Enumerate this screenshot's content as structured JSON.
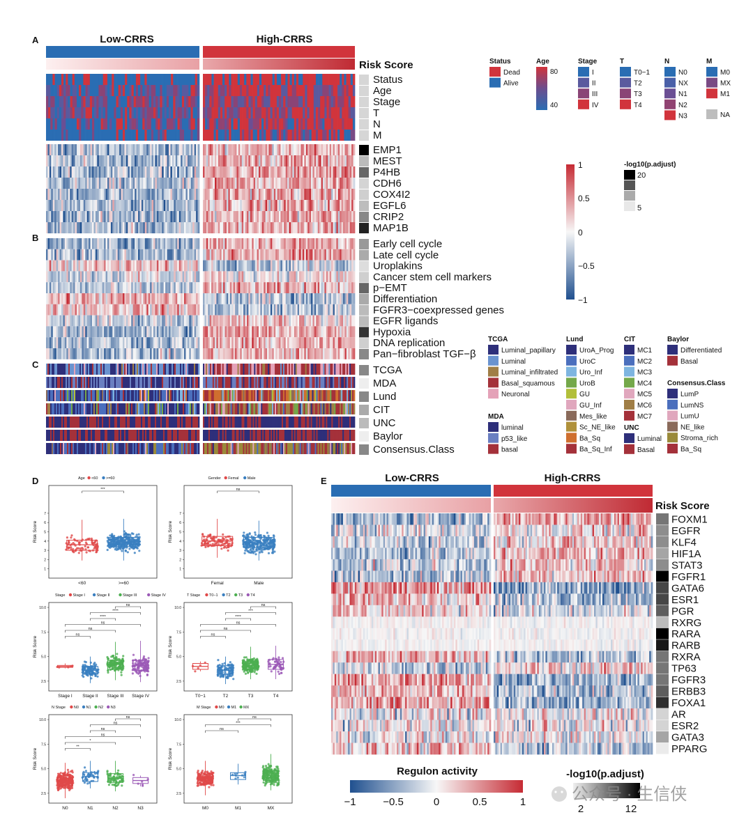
{
  "panels": [
    "A",
    "B",
    "C",
    "D",
    "E"
  ],
  "groups": {
    "low": "Low-CRRS",
    "high": "High-CRRS"
  },
  "risk_label": "Risk Score",
  "colors": {
    "blue": "#2a6db3",
    "red": "#d1343c",
    "gray": "#bdbdbd",
    "pink_light": "#f4d3d3",
    "pink_dark": "#c23840"
  },
  "clinical_rows": [
    "Status",
    "Age",
    "Stage",
    "T",
    "N",
    "M"
  ],
  "gene_rows": [
    "EMP1",
    "MEST",
    "P4HB",
    "CDH6",
    "COX4I2",
    "EGFL6",
    "CRIP2",
    "MAP1B"
  ],
  "signature_rows": [
    "Early cell cycle",
    "Late cell cycle",
    "Uroplakins",
    "Cancer stem cell markers",
    "p−EMT",
    "Differentiation",
    "FGFR3−coexpressed genes",
    "EGFR ligands",
    "Hypoxia",
    "DNA replication",
    "Pan−fibroblast TGF−β"
  ],
  "class_rows": [
    "TCGA",
    "MDA",
    "Lund",
    "CIT",
    "UNC",
    "Baylor",
    "Consensus.Class"
  ],
  "legends_top": [
    {
      "title": "Status",
      "items": [
        {
          "label": "Dead",
          "color": "#d1343c"
        },
        {
          "label": "Alive",
          "color": "#2a6db3"
        }
      ]
    },
    {
      "title": "Age",
      "gradient": [
        "#d1343c",
        "#6b4d8e",
        "#2a6db3"
      ],
      "labels": [
        "80",
        "40"
      ]
    },
    {
      "title": "Stage",
      "items": [
        {
          "label": "I",
          "color": "#2a6db3"
        },
        {
          "label": "II",
          "color": "#5a5a9e"
        },
        {
          "label": "III",
          "color": "#8a4476"
        },
        {
          "label": "IV",
          "color": "#d1343c"
        }
      ]
    },
    {
      "title": "T",
      "items": [
        {
          "label": "T0−1",
          "color": "#2a6db3"
        },
        {
          "label": "T2",
          "color": "#5a5a9e"
        },
        {
          "label": "T3",
          "color": "#8a4476"
        },
        {
          "label": "T4",
          "color": "#d1343c"
        }
      ]
    },
    {
      "title": "N",
      "items": [
        {
          "label": "N0",
          "color": "#2a6db3"
        },
        {
          "label": "NX",
          "color": "#4a60a8"
        },
        {
          "label": "N1",
          "color": "#6b4f94"
        },
        {
          "label": "N2",
          "color": "#914372"
        },
        {
          "label": "N3",
          "color": "#d1343c"
        }
      ]
    },
    {
      "title": "M",
      "items": [
        {
          "label": "M0",
          "color": "#2a6db3"
        },
        {
          "label": "MX",
          "color": "#7a4a84"
        },
        {
          "label": "M1",
          "color": "#d1343c"
        },
        {
          "label": "NA",
          "color": "#bdbdbd"
        }
      ]
    }
  ],
  "scale_a": {
    "ticks": [
      "1",
      "0.5",
      "0",
      "−0.5",
      "−1"
    ]
  },
  "padj_a": {
    "title": "-log10(p.adjust)",
    "labels": [
      "20",
      "5"
    ]
  },
  "class_legends": [
    {
      "title": "TCGA",
      "items": [
        {
          "label": "Luminal_papillary",
          "color": "#2e2f7a"
        },
        {
          "label": "Luminal",
          "color": "#6a93cf"
        },
        {
          "label": "Luminal_infiltrated",
          "color": "#a07e46"
        },
        {
          "label": "Basal_squamous",
          "color": "#a4313a"
        },
        {
          "label": "Neuronal",
          "color": "#e4a2b8"
        }
      ]
    },
    {
      "title": "MDA",
      "items": [
        {
          "label": "luminal",
          "color": "#2e2f7a"
        },
        {
          "label": "p53_like",
          "color": "#6a7fc1"
        },
        {
          "label": "basal",
          "color": "#a4313a"
        }
      ]
    },
    {
      "title": "Lund",
      "items": [
        {
          "label": "UroA_Prog",
          "color": "#2e2f7a"
        },
        {
          "label": "UroC",
          "color": "#4b6fbd"
        },
        {
          "label": "Uro_Inf",
          "color": "#7eb5e0"
        },
        {
          "label": "UroB",
          "color": "#74a84a"
        },
        {
          "label": "GU",
          "color": "#b2bf3a"
        },
        {
          "label": "GU_Inf",
          "color": "#e0a7bd"
        },
        {
          "label": "Mes_like",
          "color": "#8a6a5a"
        },
        {
          "label": "Sc_NE_like",
          "color": "#b0913b"
        },
        {
          "label": "Ba_Sq",
          "color": "#cf6f2f"
        },
        {
          "label": "Ba_Sq_Inf",
          "color": "#a4313a"
        }
      ]
    },
    {
      "title": "CIT",
      "items": [
        {
          "label": "MC1",
          "color": "#2e2f7a"
        },
        {
          "label": "MC2",
          "color": "#4b6fbd"
        },
        {
          "label": "MC3",
          "color": "#7eb5e0"
        },
        {
          "label": "MC4",
          "color": "#74a84a"
        },
        {
          "label": "MC5",
          "color": "#e0a7bd"
        },
        {
          "label": "MC6",
          "color": "#a07e46"
        },
        {
          "label": "MC7",
          "color": "#a4313a"
        }
      ]
    },
    {
      "title": "UNC",
      "items": [
        {
          "label": "Luminal",
          "color": "#2e2f7a"
        },
        {
          "label": "Basal",
          "color": "#a4313a"
        }
      ]
    },
    {
      "title": "Baylor",
      "items": [
        {
          "label": "Differentiated",
          "color": "#2e2f7a"
        },
        {
          "label": "Basal",
          "color": "#a4313a"
        }
      ]
    },
    {
      "title": "Consensus.Class",
      "items": [
        {
          "label": "LumP",
          "color": "#2e2f7a"
        },
        {
          "label": "LumNS",
          "color": "#4b6fbd"
        },
        {
          "label": "LumU",
          "color": "#e0a7bd"
        },
        {
          "label": "NE_like",
          "color": "#8a6a5a"
        },
        {
          "label": "Stroma_rich",
          "color": "#9a8a3a"
        },
        {
          "label": "Ba_Sq",
          "color": "#a4313a"
        }
      ]
    }
  ],
  "chart_data": [
    {
      "type": "box",
      "title": "Age",
      "legend": [
        "<60",
        ">=60"
      ],
      "categories": [
        "<60",
        ">=60"
      ],
      "ylabel": "Risk Score",
      "ylim": [
        0,
        10
      ],
      "ticks": [
        "1",
        "2",
        "3",
        "4",
        "5",
        "6",
        "7"
      ],
      "median": [
        3.6,
        3.9
      ],
      "q1": [
        3.0,
        3.4
      ],
      "q3": [
        4.1,
        4.4
      ],
      "lo": [
        1.9,
        1.9
      ],
      "hi": [
        6.3,
        6.4
      ],
      "n": [
        85,
        310
      ],
      "colors": [
        "#e04848",
        "#3a7fc0"
      ],
      "comparisons": [
        {
          "a": 0,
          "b": 1,
          "label": "***"
        }
      ]
    },
    {
      "type": "box",
      "title": "Gender",
      "legend": [
        "Femal",
        "Male"
      ],
      "categories": [
        "Femal",
        "Male"
      ],
      "ylabel": "Risk Score",
      "ylim": [
        0,
        10
      ],
      "ticks": [
        "1",
        "2",
        "3",
        "4",
        "5",
        "6",
        "7"
      ],
      "median": [
        4.0,
        3.8
      ],
      "q1": [
        3.5,
        3.3
      ],
      "q3": [
        4.5,
        4.4
      ],
      "lo": [
        2.2,
        1.9
      ],
      "hi": [
        6.4,
        6.2
      ],
      "n": [
        100,
        290
      ],
      "colors": [
        "#e04848",
        "#3a7fc0"
      ],
      "comparisons": [
        {
          "a": 0,
          "b": 1,
          "label": "ns"
        }
      ]
    },
    {
      "type": "box",
      "title": "Stage",
      "legend": [
        "Stage I",
        "Stage II",
        "Stage III",
        "Stage IV"
      ],
      "categories": [
        "Stage I",
        "Stage II",
        "Stage III",
        "Stage IV"
      ],
      "ylabel": "Risk Score",
      "ylim": [
        1.5,
        10.5
      ],
      "ticks": [
        "2.5",
        "5.0",
        "7.5",
        "10.0"
      ],
      "median": [
        4.0,
        3.6,
        4.2,
        4.1
      ],
      "q1": [
        3.9,
        3.2,
        3.7,
        3.6
      ],
      "q3": [
        4.1,
        4.0,
        4.6,
        4.6
      ],
      "lo": [
        3.8,
        2.3,
        2.6,
        2.4
      ],
      "hi": [
        4.3,
        5.0,
        6.5,
        6.6
      ],
      "n": [
        5,
        120,
        140,
        125
      ],
      "colors": [
        "#e04848",
        "#3a7fc0",
        "#4caf50",
        "#9b59b6"
      ],
      "comparisons": [
        {
          "a": 0,
          "b": 1,
          "label": "ns"
        },
        {
          "a": 0,
          "b": 2,
          "label": "ns"
        },
        {
          "a": 0,
          "b": 3,
          "label": "ns"
        },
        {
          "a": 1,
          "b": 2,
          "label": "****"
        },
        {
          "a": 1,
          "b": 3,
          "label": "****"
        },
        {
          "a": 2,
          "b": 3,
          "label": "ns"
        }
      ]
    },
    {
      "type": "box",
      "title": "T Stage",
      "legend": [
        "T0−1",
        "T2",
        "T3",
        "T4"
      ],
      "categories": [
        "T0−1",
        "T2",
        "T3",
        "T4"
      ],
      "ylabel": "Risk Score",
      "ylim": [
        1.5,
        10.5
      ],
      "ticks": [
        "2.5",
        "5.0",
        "7.5",
        "10.0"
      ],
      "median": [
        4.0,
        3.6,
        4.1,
        4.2
      ],
      "q1": [
        3.7,
        3.2,
        3.7,
        3.7
      ],
      "q3": [
        4.3,
        4.1,
        4.5,
        4.7
      ],
      "lo": [
        3.5,
        2.2,
        2.7,
        2.7
      ],
      "hi": [
        4.5,
        5.0,
        6.0,
        6.1
      ],
      "n": [
        5,
        110,
        180,
        55
      ],
      "colors": [
        "#e04848",
        "#3a7fc0",
        "#4caf50",
        "#9b59b6"
      ],
      "comparisons": [
        {
          "a": 0,
          "b": 1,
          "label": "ns"
        },
        {
          "a": 0,
          "b": 2,
          "label": "ns"
        },
        {
          "a": 0,
          "b": 3,
          "label": "ns"
        },
        {
          "a": 1,
          "b": 2,
          "label": "****"
        },
        {
          "a": 1,
          "b": 3,
          "label": "***"
        },
        {
          "a": 2,
          "b": 3,
          "label": "ns"
        }
      ]
    },
    {
      "type": "box",
      "title": "N Stage",
      "legend": [
        "N0",
        "N1",
        "N2",
        "N3"
      ],
      "categories": [
        "N0",
        "N1",
        "N2",
        "N3"
      ],
      "ylabel": "Risk Score",
      "ylim": [
        1.5,
        10.5
      ],
      "ticks": [
        "2.5",
        "5.0",
        "7.5",
        "10.0"
      ],
      "median": [
        3.8,
        4.2,
        4.0,
        3.8
      ],
      "q1": [
        3.3,
        3.7,
        3.6,
        3.5
      ],
      "q3": [
        4.3,
        4.6,
        4.5,
        4.1
      ],
      "lo": [
        2.0,
        3.0,
        2.7,
        3.2
      ],
      "hi": [
        5.6,
        5.8,
        5.8,
        4.3
      ],
      "n": [
        230,
        45,
        75,
        6
      ],
      "colors": [
        "#e04848",
        "#3a7fc0",
        "#4caf50",
        "#9b59b6"
      ],
      "comparisons": [
        {
          "a": 0,
          "b": 1,
          "label": "**"
        },
        {
          "a": 0,
          "b": 2,
          "label": "*"
        },
        {
          "a": 0,
          "b": 3,
          "label": "ns"
        },
        {
          "a": 1,
          "b": 2,
          "label": "ns"
        },
        {
          "a": 1,
          "b": 3,
          "label": "ns"
        },
        {
          "a": 2,
          "b": 3,
          "label": "ns"
        }
      ]
    },
    {
      "type": "box",
      "title": "M Stage",
      "legend": [
        "M0",
        "M1",
        "MX"
      ],
      "categories": [
        "M0",
        "M1",
        "MX"
      ],
      "ylabel": "Risk Score",
      "ylim": [
        1.5,
        10.5
      ],
      "ticks": [
        "2.5",
        "5.0",
        "7.5",
        "10.0"
      ],
      "median": [
        4.0,
        4.3,
        4.3
      ],
      "q1": [
        3.5,
        3.9,
        3.8
      ],
      "q3": [
        4.4,
        4.6,
        4.8
      ],
      "lo": [
        2.3,
        3.4,
        2.8
      ],
      "hi": [
        5.8,
        5.5,
        6.5
      ],
      "n": [
        190,
        11,
        195
      ],
      "colors": [
        "#e04848",
        "#3a7fc0",
        "#4caf50"
      ],
      "comparisons": [
        {
          "a": 0,
          "b": 1,
          "label": "ns"
        },
        {
          "a": 0,
          "b": 2,
          "label": "***"
        },
        {
          "a": 1,
          "b": 2,
          "label": "ns"
        }
      ]
    },
    {
      "type": "heatmap",
      "title": "Regulon activity",
      "categories": [
        "FOXM1",
        "EGFR",
        "KLF4",
        "HIF1A",
        "STAT3",
        "FGFR1",
        "GATA6",
        "ESR1",
        "PGR",
        "RXRG",
        "RARA",
        "RARB",
        "RXRA",
        "TP63",
        "FGFR3",
        "ERBB3",
        "FOXA1",
        "AR",
        "ESR2",
        "GATA3",
        "PPARG"
      ],
      "padj": [
        7,
        6,
        6,
        5,
        6,
        12,
        9,
        9,
        8,
        4,
        12,
        11,
        7,
        7,
        7,
        8,
        10,
        3,
        3,
        5,
        2
      ],
      "scale_ticks": [
        "−1",
        "−0.5",
        "0",
        "0.5",
        "1"
      ],
      "padj_title": "-log10(p.adjust)",
      "padj_ticks": [
        "2",
        "12"
      ]
    }
  ],
  "watermark": "公众号 · 生信侠"
}
